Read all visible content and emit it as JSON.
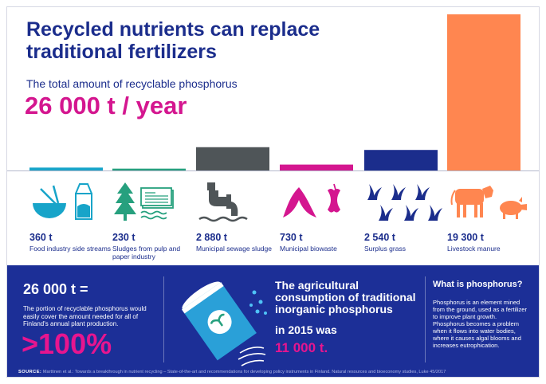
{
  "header": {
    "title": "Recycled nutrients can replace traditional fertilizers",
    "subtitle": "The total amount of recyclable phosphorus",
    "total": "26 000 t / year"
  },
  "chart_data": {
    "type": "bar",
    "title": "",
    "xlabel": "",
    "ylabel": "",
    "unit": "t",
    "ylim": [
      0,
      19300
    ],
    "categories": [
      "Food industry side streams",
      "Sludges from pulp and paper industry",
      "Municipal sewage sludge",
      "Municipal biowaste",
      "Surplus grass",
      "Livestock manure"
    ],
    "values": [
      360,
      230,
      2880,
      730,
      2540,
      19300
    ],
    "value_labels": [
      "360 t",
      "230 t",
      "2 880 t",
      "730 t",
      "2 540 t",
      "19 300 t"
    ],
    "icons": [
      "bowl-and-milk-carton-icon",
      "tree-and-paper-icon",
      "sewage-pipe-icon",
      "banana-and-apple-core-icon",
      "grass-icon",
      "cow-and-pig-icon"
    ],
    "colors": [
      "#17a4c9",
      "#26a07e",
      "#4f5558",
      "#d4168f",
      "#1b2d8c",
      "#ff8650"
    ],
    "grid": false,
    "legend": "none"
  },
  "panel": {
    "total": "26 000 t =",
    "text": "The portion of recyclable phosphorus would easily cover the amount needed for all of Finland's annual plant production.",
    "percent": ">100%",
    "agri_heading": "The agricultural consumption of traditional inorganic phosphorus",
    "agri_year": "in 2015 was",
    "agri_value": "11 000 t.",
    "what_heading": "What is phosphorus?",
    "what_text": "Phosphorus is an element mined from the ground, used as a fertilizer to improve plant growth. Phosphorus becomes a problem when it flows into water bodies, where it causes algal blooms and increases eutrophication.",
    "source_label": "SOURCE:",
    "source_text": " Marttinen et al.: Towards a breakthrough in nutrient recycling – State-of-the-art and recommendations for developing policy instruments in Finland. Natural resources and bioeconomy studies, Luke 45/2017",
    "bottle_icon": "fertilizer-bottle-icon"
  },
  "colors": {
    "navy": "#1b2d8c",
    "magenta": "#d4168f",
    "panel": "#1c2f97"
  }
}
